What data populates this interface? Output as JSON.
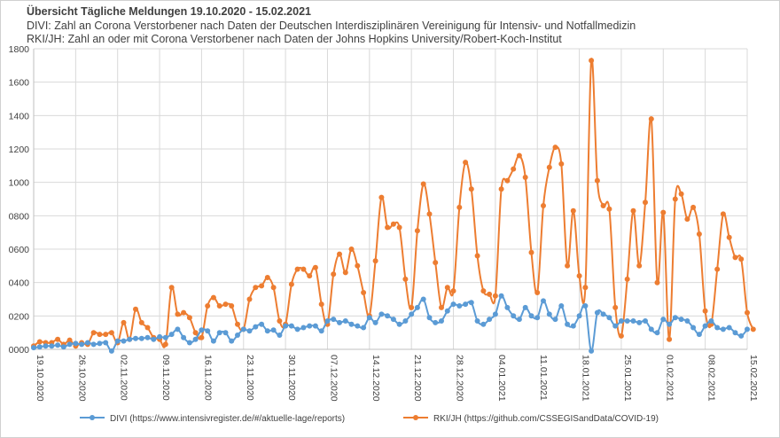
{
  "chart_data": {
    "type": "line",
    "title": "Übersicht Tägliche Meldungen 19.10.2020 - 15.02.2021",
    "subtitle_lines": [
      "DIVI: Zahl an Corona Verstorbener nach Daten der Deutschen Interdisziplinären Vereinigung für Intensiv- und Notfallmedizin",
      "RKI/JH: Zahl an oder mit Corona Verstorbener nach Daten der Johns Hopkins University/Robert-Koch-Institut"
    ],
    "xlabel": "",
    "ylabel": "",
    "ylim": [
      0,
      1800
    ],
    "grid": true,
    "legend_position": "bottom",
    "y_tick_labels": [
      "0000",
      "0200",
      "0400",
      "0600",
      "0800",
      "1000",
      "1200",
      "1400",
      "1600",
      "1800"
    ],
    "x_tick_labels": [
      "19.10.2020",
      "26.10.2020",
      "02.11.2020",
      "09.11.2020",
      "16.11.2020",
      "23.11.2020",
      "30.11.2020",
      "07.12.2020",
      "14.12.2020",
      "21.12.2020",
      "28.12.2020",
      "04.01.2021",
      "11.01.2021",
      "18.01.2021",
      "25.01.2021",
      "01.02.2021",
      "08.02.2021",
      "15.02.2021"
    ],
    "num_days": 120,
    "series": [
      {
        "name": "DIVI (https://www.intensivregister.de/#/aktuelle-lage/reports)",
        "color": "#5B9BD5",
        "values": [
          10,
          15,
          20,
          20,
          25,
          15,
          30,
          35,
          30,
          40,
          30,
          35,
          40,
          -10,
          50,
          50,
          60,
          65,
          65,
          70,
          60,
          75,
          70,
          90,
          120,
          70,
          40,
          60,
          115,
          110,
          50,
          100,
          100,
          50,
          85,
          120,
          110,
          135,
          150,
          110,
          115,
          85,
          140,
          140,
          120,
          130,
          140,
          140,
          110,
          170,
          180,
          160,
          170,
          150,
          140,
          130,
          190,
          160,
          210,
          200,
          180,
          150,
          170,
          210,
          250,
          300,
          190,
          160,
          170,
          230,
          270,
          260,
          270,
          280,
          170,
          150,
          180,
          210,
          320,
          250,
          200,
          180,
          250,
          200,
          190,
          290,
          210,
          180,
          260,
          150,
          140,
          200,
          260,
          -10,
          220,
          210,
          190,
          140,
          170,
          170,
          170,
          160,
          170,
          120,
          100,
          180,
          150,
          190,
          180,
          170,
          130,
          90,
          140,
          170,
          130,
          120,
          130,
          100,
          80,
          120
        ]
      },
      {
        "name": "RKI/JH (https://github.com/CSSEGISandData/COVID-19)",
        "color": "#ED7D31",
        "values": [
          20,
          45,
          40,
          40,
          60,
          30,
          55,
          20,
          40,
          30,
          100,
          90,
          90,
          100,
          40,
          160,
          60,
          240,
          160,
          130,
          70,
          60,
          30,
          370,
          210,
          220,
          190,
          100,
          70,
          260,
          310,
          260,
          270,
          260,
          150,
          120,
          300,
          370,
          380,
          430,
          370,
          170,
          150,
          390,
          480,
          480,
          440,
          490,
          270,
          150,
          450,
          570,
          460,
          600,
          500,
          340,
          200,
          530,
          910,
          730,
          750,
          730,
          420,
          250,
          710,
          990,
          810,
          520,
          250,
          370,
          350,
          850,
          1120,
          960,
          560,
          350,
          330,
          320,
          960,
          1010,
          1080,
          1160,
          1030,
          580,
          340,
          860,
          1090,
          1210,
          1110,
          500,
          830,
          440,
          370,
          1730,
          1010,
          860,
          840,
          250,
          80,
          420,
          830,
          500,
          880,
          1380,
          400,
          820,
          60,
          900,
          930,
          780,
          850,
          690,
          230,
          150,
          480,
          810,
          670,
          550,
          540,
          220,
          120
        ]
      }
    ]
  }
}
